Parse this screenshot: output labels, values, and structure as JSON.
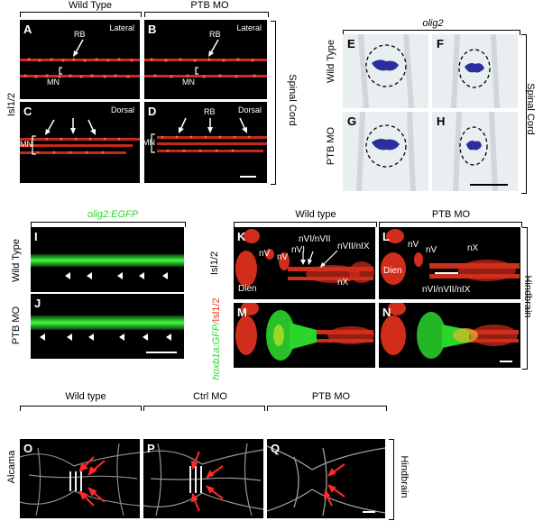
{
  "spinal": {
    "col_wt": "Wild Type",
    "col_ptb": "PTB MO",
    "row_label": "Isl1/2",
    "side_label": "Spinal Cord",
    "panels": {
      "A": {
        "letter": "A",
        "view": "Lateral",
        "rb": "RB",
        "mn": "MN"
      },
      "B": {
        "letter": "B",
        "view": "Lateral",
        "rb": "RB",
        "mn": "MN"
      },
      "C": {
        "letter": "C",
        "view": "Dorsal",
        "mn": "MN"
      },
      "D": {
        "letter": "D",
        "view": "Dorsal",
        "rb": "RB",
        "mn": "MN"
      }
    }
  },
  "olig": {
    "title": "olig2",
    "row_wt": "Wild Type",
    "row_ptb": "PTB MO",
    "side_label": "Spinal Cord",
    "letters": [
      "E",
      "F",
      "G",
      "H"
    ]
  },
  "egfp": {
    "title": "olig2:EGFP",
    "row_wt": "Wild Type",
    "row_ptb": "PTB MO",
    "letters": [
      "I",
      "J"
    ]
  },
  "hind": {
    "col_wt": "Wild type",
    "col_ptb": "PTB MO",
    "row_isl": "Isl1/2",
    "row_merge_green": "hoxb1a:GFP/",
    "row_merge_red": "Isl1/2",
    "side_label": "Hindbrain",
    "K": {
      "letter": "K",
      "dien": "Dien",
      "nv": "nV",
      "nvi": "nVI",
      "nvi_nvii": "nVI/nVII",
      "nvii_nix": "nVII/nIX",
      "nx": "nX"
    },
    "L": {
      "letter": "L",
      "dien": "Dien",
      "nv1": "nV",
      "nv2": "nV",
      "nx": "nX",
      "combo": "nVI/nVII/nIX"
    },
    "M": {
      "letter": "M"
    },
    "N": {
      "letter": "N"
    }
  },
  "alcama": {
    "col_wt": "Wild type",
    "col_ctrl": "Ctrl MO",
    "col_ptb": "PTB MO",
    "row_label": "Alcama",
    "side_label": "Hindbrain",
    "letters": [
      "O",
      "P",
      "Q"
    ]
  },
  "colors": {
    "isl_red": "#e8321e",
    "gfp_green": "#2bd62b",
    "arrow_red": "#ff2a2a",
    "ish_blue": "#2b2f9e"
  }
}
